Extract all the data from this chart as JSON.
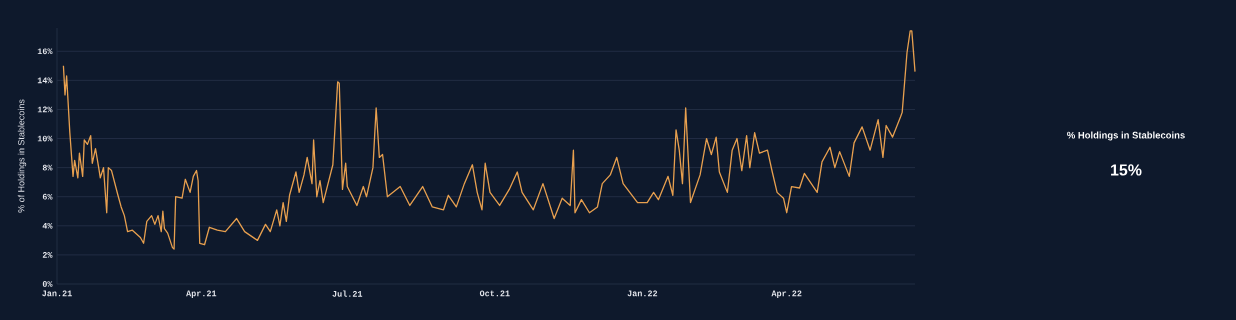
{
  "chart_data": [
    {
      "type": "line",
      "ylabel": "% of Holdings in Stablecoins",
      "x": [
        "2021-01-05",
        "2021-01-06",
        "2021-01-07",
        "2021-01-09",
        "2021-01-11",
        "2021-01-12",
        "2021-01-14",
        "2021-01-15",
        "2021-01-17",
        "2021-01-18",
        "2021-01-20",
        "2021-01-22",
        "2021-01-23",
        "2021-01-25",
        "2021-01-27",
        "2021-01-28",
        "2021-01-30",
        "2021-02-01",
        "2021-02-02",
        "2021-02-04",
        "2021-02-08",
        "2021-02-10",
        "2021-02-12",
        "2021-02-14",
        "2021-02-17",
        "2021-02-22",
        "2021-02-24",
        "2021-02-26",
        "2021-03-01",
        "2021-03-03",
        "2021-03-05",
        "2021-03-07",
        "2021-03-08",
        "2021-03-09",
        "2021-03-11",
        "2021-03-14",
        "2021-03-15",
        "2021-03-16",
        "2021-03-20",
        "2021-03-22",
        "2021-03-25",
        "2021-03-27",
        "2021-03-29",
        "2021-03-30",
        "2021-03-31",
        "2021-04-03",
        "2021-04-06",
        "2021-04-11",
        "2021-04-16",
        "2021-04-23",
        "2021-04-28",
        "2021-05-06",
        "2021-05-11",
        "2021-05-14",
        "2021-05-18",
        "2021-05-20",
        "2021-05-22",
        "2021-05-24",
        "2021-05-26",
        "2021-05-30",
        "2021-06-01",
        "2021-06-04",
        "2021-06-06",
        "2021-06-09",
        "2021-06-10",
        "2021-06-12",
        "2021-06-14",
        "2021-06-16",
        "2021-06-19",
        "2021-06-22",
        "2021-06-25",
        "2021-06-26",
        "2021-06-28",
        "2021-06-30",
        "2021-07-01",
        "2021-07-07",
        "2021-07-11",
        "2021-07-13",
        "2021-07-17",
        "2021-07-19",
        "2021-07-21",
        "2021-07-23",
        "2021-07-26",
        "2021-08-03",
        "2021-08-09",
        "2021-08-17",
        "2021-08-23",
        "2021-08-30",
        "2021-09-02",
        "2021-09-07",
        "2021-09-12",
        "2021-09-17",
        "2021-09-20",
        "2021-09-23",
        "2021-09-25",
        "2021-09-28",
        "2021-10-04",
        "2021-10-10",
        "2021-10-15",
        "2021-10-18",
        "2021-10-25",
        "2021-10-31",
        "2021-11-07",
        "2021-11-12",
        "2021-11-17",
        "2021-11-19",
        "2021-11-20",
        "2021-11-24",
        "2021-11-29",
        "2021-12-04",
        "2021-12-07",
        "2021-12-12",
        "2021-12-16",
        "2021-12-20",
        "2021-12-29",
        "2022-01-04",
        "2022-01-08",
        "2022-01-11",
        "2022-01-17",
        "2022-01-20",
        "2022-01-22",
        "2022-01-24",
        "2022-01-26",
        "2022-01-28",
        "2022-01-31",
        "2022-02-06",
        "2022-02-10",
        "2022-02-13",
        "2022-02-16",
        "2022-02-18",
        "2022-02-23",
        "2022-02-26",
        "2022-03-01",
        "2022-03-04",
        "2022-03-07",
        "2022-03-09",
        "2022-03-12",
        "2022-03-15",
        "2022-03-20",
        "2022-03-23",
        "2022-03-26",
        "2022-03-30",
        "2022-04-01",
        "2022-04-04",
        "2022-04-09",
        "2022-04-12",
        "2022-04-20",
        "2022-04-23",
        "2022-04-28",
        "2022-05-01",
        "2022-05-04",
        "2022-05-10",
        "2022-05-13",
        "2022-05-18",
        "2022-05-23",
        "2022-05-28",
        "2022-05-31",
        "2022-06-02",
        "2022-06-06",
        "2022-06-11",
        "2022-06-12",
        "2022-06-15",
        "2022-06-17",
        "2022-06-18",
        "2022-06-20"
      ],
      "series": [
        {
          "color": "#e8a04f",
          "values": [
            15.0,
            13.0,
            14.3,
            10.4,
            7.4,
            8.5,
            7.3,
            9.0,
            7.4,
            9.9,
            9.6,
            10.2,
            8.3,
            9.3,
            8.0,
            7.3,
            8.0,
            4.9,
            8.0,
            7.8,
            6.1,
            5.3,
            4.7,
            3.6,
            3.7,
            3.2,
            2.8,
            4.3,
            4.7,
            4.1,
            4.7,
            3.6,
            5.0,
            3.8,
            3.5,
            2.5,
            2.4,
            6.0,
            5.9,
            7.2,
            6.3,
            7.4,
            7.8,
            7.1,
            2.8,
            2.7,
            3.9,
            3.7,
            3.6,
            4.5,
            3.6,
            3.0,
            4.1,
            3.6,
            5.1,
            4.0,
            5.6,
            4.3,
            6.1,
            7.7,
            6.3,
            7.5,
            8.7,
            6.9,
            9.9,
            6.0,
            7.1,
            5.6,
            6.9,
            8.2,
            13.9,
            13.8,
            6.5,
            8.3,
            6.7,
            5.4,
            6.7,
            6.0,
            8.0,
            12.1,
            8.7,
            8.9,
            6.0,
            6.7,
            5.4,
            6.7,
            5.3,
            5.1,
            6.1,
            5.3,
            6.9,
            8.2,
            6.3,
            5.1,
            8.3,
            6.3,
            5.4,
            6.5,
            7.7,
            6.3,
            5.1,
            6.9,
            4.5,
            5.9,
            5.4,
            9.2,
            4.9,
            5.8,
            4.9,
            5.3,
            6.9,
            7.5,
            8.7,
            6.9,
            5.6,
            5.6,
            6.3,
            5.8,
            7.4,
            6.1,
            10.6,
            9.2,
            6.9,
            12.1,
            5.6,
            7.5,
            10.0,
            8.9,
            10.1,
            7.7,
            6.3,
            9.2,
            10.0,
            7.8,
            10.2,
            8.0,
            10.4,
            9.0,
            9.2,
            7.7,
            6.3,
            5.9,
            4.9,
            6.7,
            6.6,
            7.6,
            6.3,
            8.4,
            9.4,
            8.0,
            9.1,
            7.4,
            9.7,
            10.8,
            9.2,
            11.3,
            8.7,
            10.9,
            10.1,
            11.5,
            11.8,
            15.9,
            17.4,
            17.4,
            14.6
          ]
        }
      ],
      "xlim": [
        "2021-01-01",
        "2022-06-20"
      ],
      "xticks": [
        {
          "value": "2021-01-01",
          "label": "Jan.21"
        },
        {
          "value": "2021-04-01",
          "label": "Apr.21"
        },
        {
          "value": "2021-07-01",
          "label": "Jul.21"
        },
        {
          "value": "2021-10-01",
          "label": "Oct.21"
        },
        {
          "value": "2022-01-01",
          "label": "Jan.22"
        },
        {
          "value": "2022-04-01",
          "label": "Apr.22"
        }
      ],
      "ylim": [
        0,
        17.6
      ],
      "yticks": [
        {
          "value": 0,
          "label": "0%"
        },
        {
          "value": 2,
          "label": "2%"
        },
        {
          "value": 4,
          "label": "4%"
        },
        {
          "value": 6,
          "label": "6%"
        },
        {
          "value": 8,
          "label": "8%"
        },
        {
          "value": 10,
          "label": "10%"
        },
        {
          "value": 12,
          "label": "12%"
        },
        {
          "value": 14,
          "label": "14%"
        },
        {
          "value": 16,
          "label": "16%"
        }
      ],
      "grid": "y",
      "marker": "none",
      "line_style": "solid"
    },
    {
      "type": "other",
      "title": "% Holdings in Stablecoins",
      "annotations": [
        "15%"
      ]
    }
  ]
}
